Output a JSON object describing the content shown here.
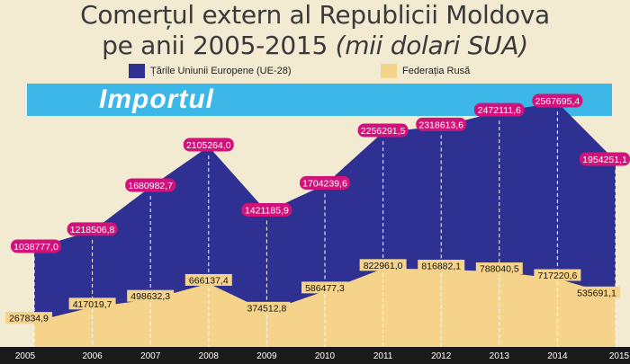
{
  "title_line1": "Comerțul extern al Republicii Moldova",
  "title_line2": "pe anii 2005-2015",
  "title_unit": "(mii dolari SUA)",
  "banner": "Importul",
  "colors": {
    "eu": "#2e3192",
    "russia": "#f5d38a",
    "eu_label_bg": "#d1127b",
    "banner": "#3db7e8"
  },
  "chart_data": {
    "type": "area",
    "title": "Comerțul extern al Republicii Moldova pe anii 2005-2015 (mii dolari SUA)",
    "subtitle": "Importul",
    "x": [
      "2005",
      "2006",
      "2007",
      "2008",
      "2009",
      "2010",
      "2011",
      "2012",
      "2013",
      "2014",
      "2015"
    ],
    "series": [
      {
        "name": "Țările Uniunii Europene (UE-28)",
        "values": [
          1038777.0,
          1218506.8,
          1680982.7,
          2105264.0,
          1421185.9,
          1704239.6,
          2256291.5,
          2318613.6,
          2472111.6,
          2567695.4,
          1954251.1
        ],
        "labels": [
          "1038777,0",
          "1218506,8",
          "1680982,7",
          "2105264,0",
          "1421185,9",
          "1704239,6",
          "2256291,5",
          "2318613,6",
          "2472111,6",
          "2567695,4",
          "1954251,1"
        ]
      },
      {
        "name": "Federația Rusă",
        "values": [
          267834.9,
          417019.7,
          498632.3,
          666137.4,
          374512.8,
          586477.3,
          822961.0,
          816882.1,
          788040.5,
          717220.6,
          535691.1
        ],
        "labels": [
          "267834,9",
          "417019,7",
          "498632,3",
          "666137,4",
          "374512,8",
          "586477,3",
          "822961,0",
          "816882,1",
          "788040,5",
          "717220,6",
          "535691,1"
        ]
      }
    ],
    "legend_position": "top"
  }
}
